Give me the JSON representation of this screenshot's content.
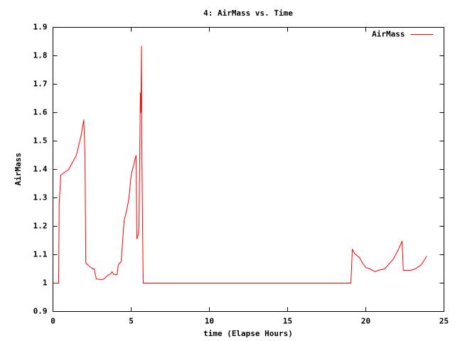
{
  "chart_data": {
    "type": "line",
    "title": "4: AirMass vs. Time",
    "x_label": "time (Elapse Hours)",
    "y_label": "AirMass",
    "x": [
      0,
      0.36,
      0.4,
      0.5,
      1.0,
      1.5,
      1.8,
      1.97,
      2.05,
      2.1,
      2.55,
      2.64,
      2.77,
      3.1,
      3.27,
      3.45,
      3.73,
      3.78,
      3.9,
      4.1,
      4.18,
      4.36,
      4.55,
      4.73,
      4.86,
      5.0,
      5.27,
      5.32,
      5.36,
      5.45,
      5.5,
      5.59,
      5.62,
      5.66,
      5.68,
      5.73,
      5.77,
      19.05,
      19.14,
      19.27,
      19.36,
      19.6,
      19.8,
      20.0,
      20.27,
      20.6,
      20.8,
      21.2,
      21.45,
      21.77,
      22.1,
      22.32,
      22.4,
      22.86,
      23.18,
      23.55,
      23.73,
      23.9
    ],
    "series": [
      {
        "name": "AirMass",
        "color": "#ff0000",
        "values": [
          1.0,
          1.0,
          1.28,
          1.38,
          1.4,
          1.45,
          1.52,
          1.575,
          1.45,
          1.07,
          1.05,
          1.05,
          1.015,
          1.012,
          1.015,
          1.025,
          1.035,
          1.04,
          1.03,
          1.03,
          1.065,
          1.075,
          1.22,
          1.26,
          1.3,
          1.38,
          1.44,
          1.45,
          1.155,
          1.17,
          1.2,
          1.67,
          1.6,
          1.835,
          1.5,
          1.2,
          1.0,
          1.0,
          1.12,
          1.105,
          1.1,
          1.09,
          1.07,
          1.055,
          1.05,
          1.04,
          1.045,
          1.05,
          1.065,
          1.085,
          1.12,
          1.148,
          1.045,
          1.045,
          1.05,
          1.065,
          1.08,
          1.095
        ]
      }
    ],
    "xlim": [
      0,
      25
    ],
    "xticks": [
      0,
      5,
      10,
      15,
      20,
      25
    ],
    "ylim": [
      0.9,
      1.9
    ],
    "yticks": [
      0.9,
      1,
      1.1,
      1.2,
      1.3,
      1.4,
      1.5,
      1.6,
      1.7,
      1.8,
      1.9
    ],
    "grid": false,
    "legend_position": "top-right"
  }
}
